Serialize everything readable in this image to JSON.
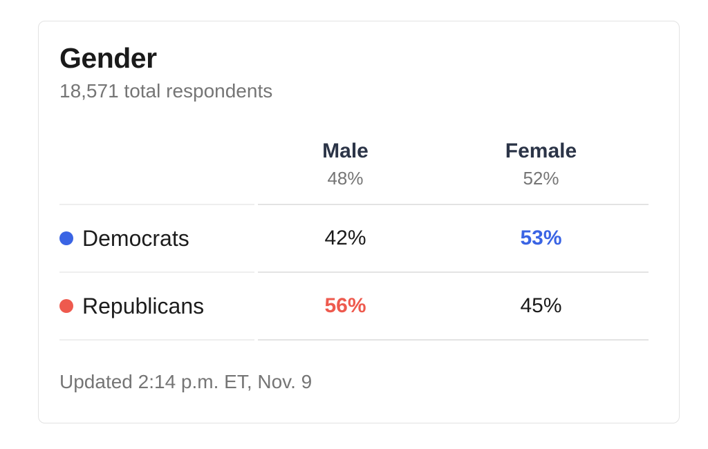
{
  "chart_data": {
    "type": "table",
    "title": "Gender",
    "subtitle": "18,571 total respondents",
    "total_respondents": 18571,
    "columns": [
      {
        "label": "Male",
        "share": "48%"
      },
      {
        "label": "Female",
        "share": "52%"
      }
    ],
    "rows": [
      {
        "party": "Democrats",
        "color": "#3a64e4",
        "values": [
          "42%",
          "53%"
        ],
        "highlight_column": "Female"
      },
      {
        "party": "Republicans",
        "color": "#ee5a4e",
        "values": [
          "56%",
          "45%"
        ],
        "highlight_column": "Male"
      }
    ],
    "updated": "Updated 2:14 p.m. ET, Nov. 9"
  },
  "colors": {
    "democrat_blue": "#3a64e4",
    "republican_red": "#ee5a4e",
    "header_navy": "#2b3447",
    "muted_gray": "#757575",
    "divider_gray": "#e3e3e3",
    "card_border": "#e2e2e2"
  }
}
